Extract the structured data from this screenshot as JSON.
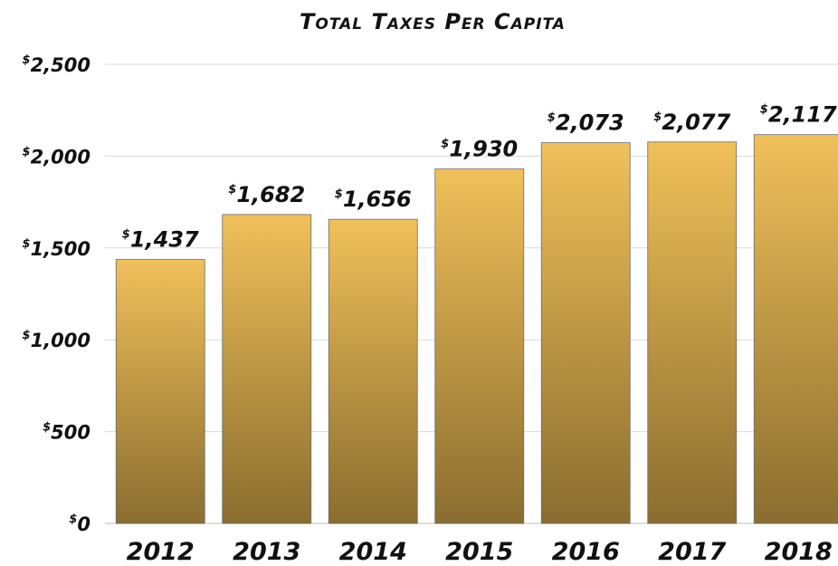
{
  "chart_data": {
    "type": "bar",
    "title": "Total Taxes Per Capita",
    "categories": [
      "2012",
      "2013",
      "2014",
      "2015",
      "2016",
      "2017",
      "2018"
    ],
    "values": [
      1437,
      1682,
      1656,
      1930,
      2073,
      2077,
      2117
    ],
    "value_labels": [
      "1,437",
      "1,682",
      "1,656",
      "1,930",
      "2,073",
      "2,077",
      "2,117"
    ],
    "ylim": [
      0,
      2500
    ],
    "yticks": [
      0,
      500,
      1000,
      1500,
      2000,
      2500
    ],
    "ytick_labels": [
      "0",
      "500",
      "1,000",
      "1,500",
      "2,000",
      "2,500"
    ],
    "currency_symbol": "$",
    "xlabel": "",
    "ylabel": "",
    "grid": true,
    "legend": "none",
    "colors": {
      "bar_top": "#f0c05a",
      "bar_bottom": "#8a6d2f",
      "bar_outline": "#6b6b6b",
      "grid": "#d9d9d9",
      "text": "#111111"
    }
  }
}
